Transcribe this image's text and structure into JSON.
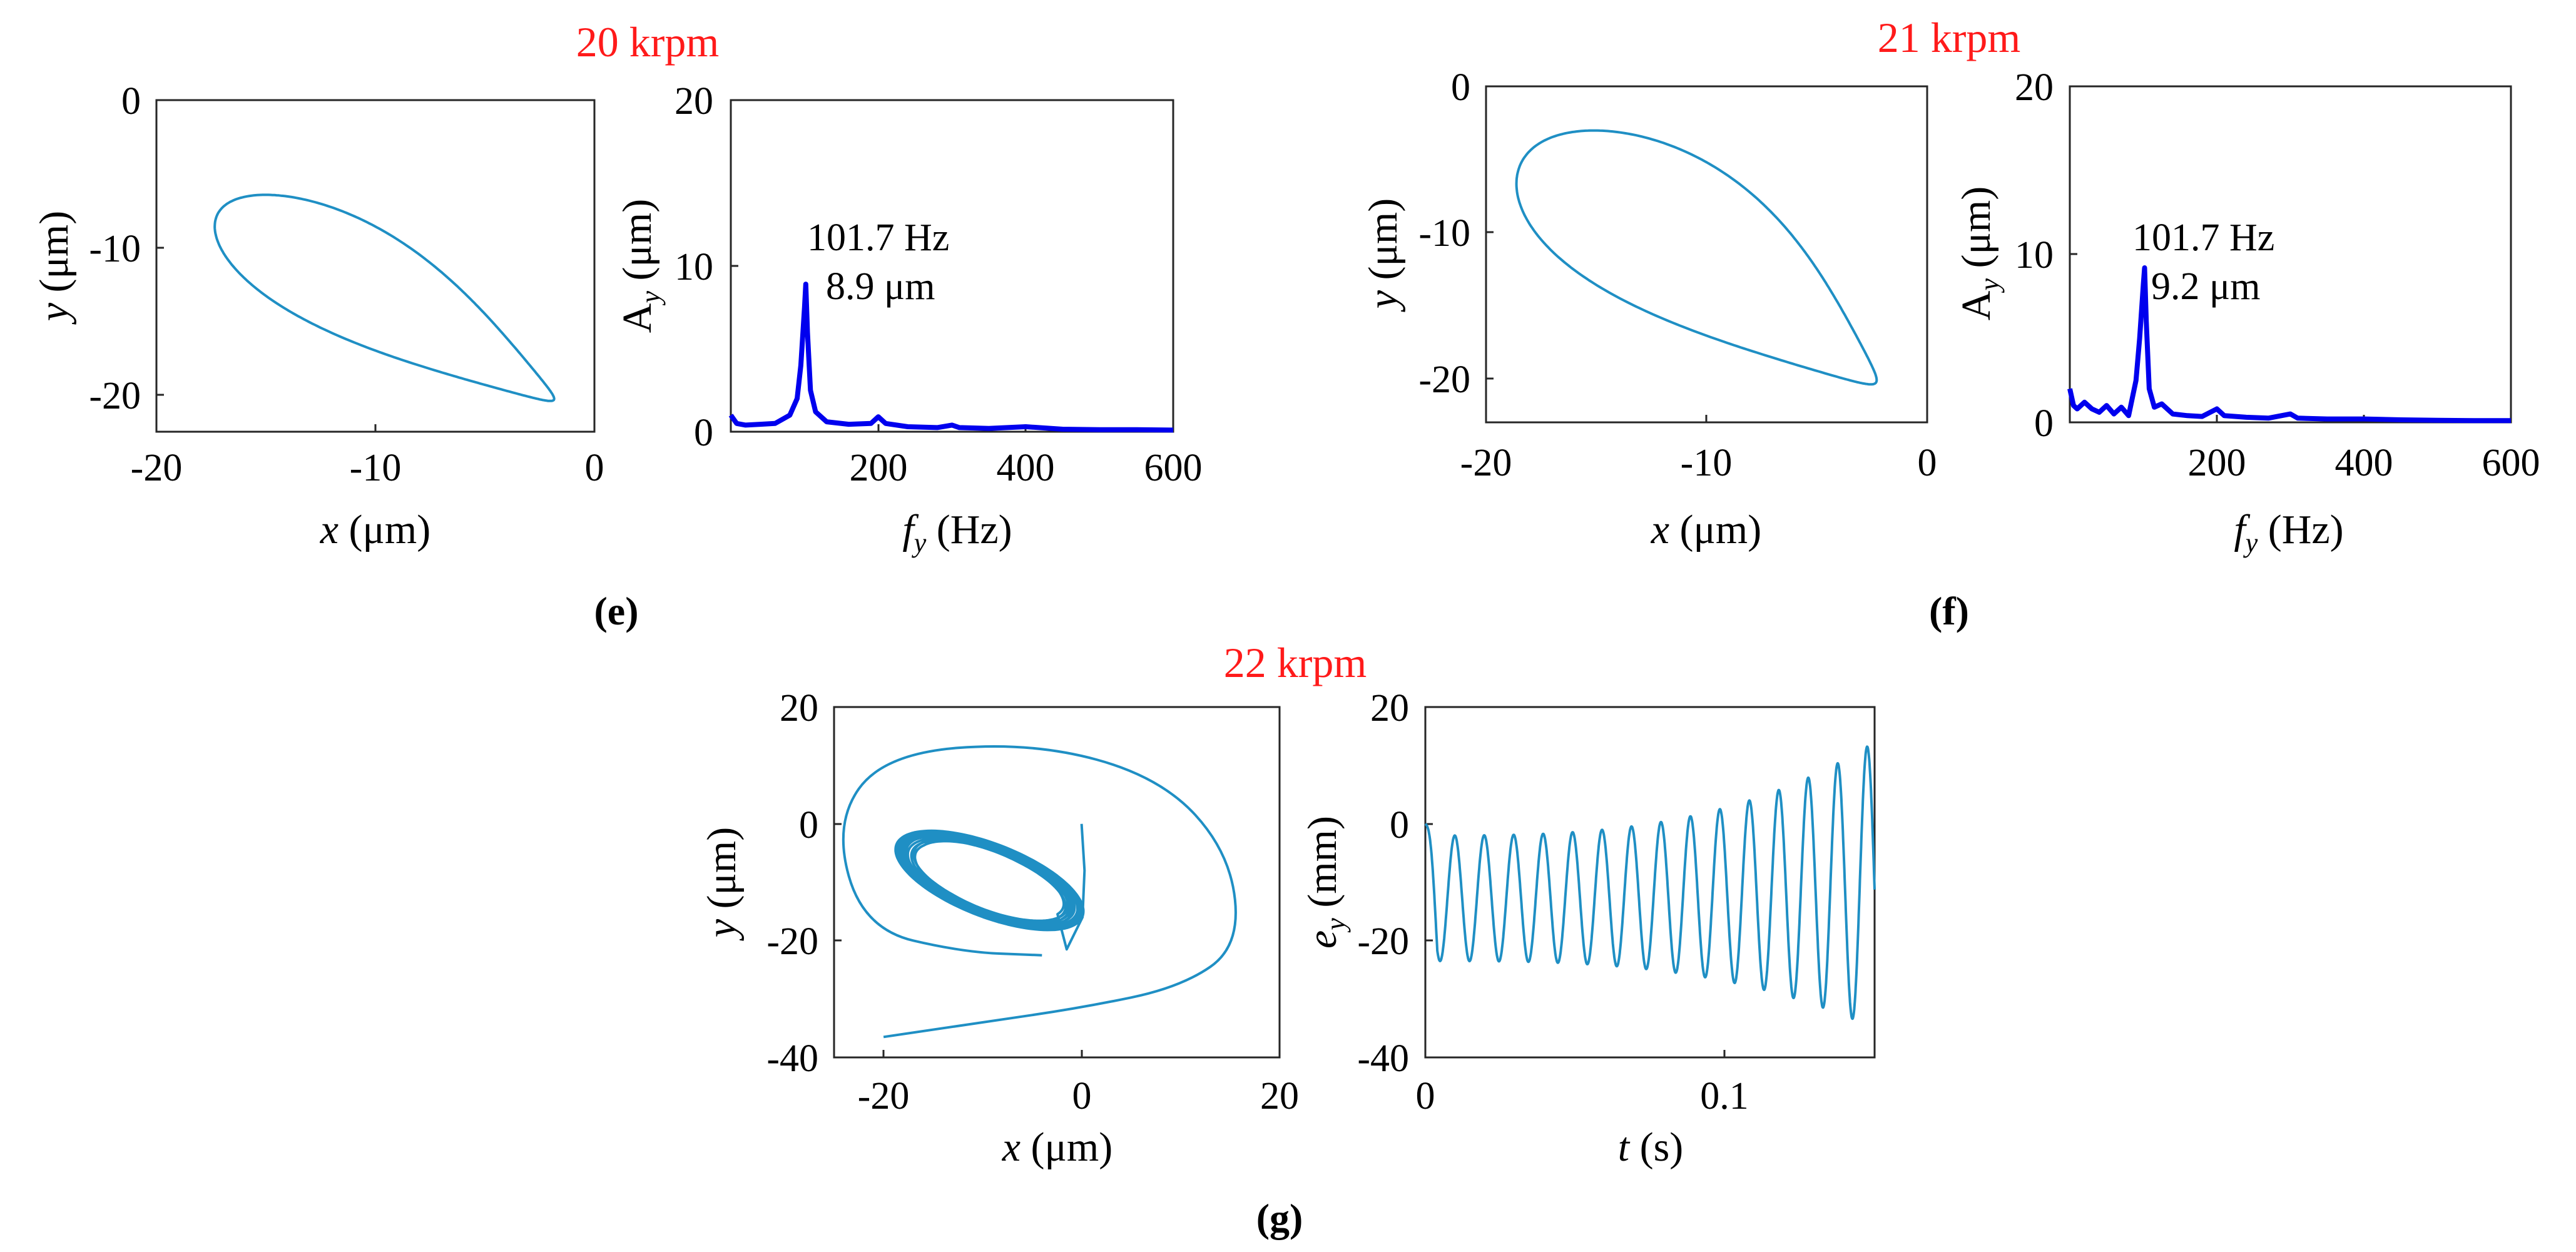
{
  "figure": {
    "speeds": {
      "e": "20 krpm",
      "f": "21 krpm",
      "g": "22 krpm"
    },
    "captions": {
      "e": "(e)",
      "f": "(f)",
      "g": "(g)"
    },
    "labels": {
      "orbit_x": {
        "var": "x",
        "unit": " (μm)"
      },
      "orbit_y": {
        "var": "y",
        "unit": " (μm)"
      },
      "spec_y": {
        "base": "A",
        "sub": "y",
        "unit": " (μm)"
      },
      "spec_x": {
        "base": "f",
        "sub": "y",
        "unit": " (Hz)"
      },
      "time_y": {
        "base": "e",
        "sub": "y",
        "unit": " (mm)"
      },
      "time_x": {
        "var": "t",
        "unit": " (s)"
      }
    },
    "annotations": {
      "e_freq": "101.7 Hz",
      "e_amp": "8.9 μm",
      "f_freq": "101.7 Hz",
      "f_amp": "9.2 μm"
    }
  },
  "chart_data": [
    {
      "id": "e-orbit",
      "type": "line",
      "panel": "e",
      "subtitle": "20 krpm",
      "xlabel": "x (μm)",
      "ylabel": "y (μm)",
      "xlim": [
        -20,
        0
      ],
      "ylim": [
        -22.5,
        0
      ],
      "xticks": [
        -20,
        -10,
        0
      ],
      "yticks": [
        -20,
        -10,
        0
      ],
      "orbit": {
        "cx": -9.36,
        "cy": -13.74,
        "alen": 10.0,
        "blen": 4.15,
        "angle_deg": -41.5,
        "tail_pow": 1.7
      },
      "color": "#1f8fc4"
    },
    {
      "id": "e-spectrum",
      "type": "line",
      "panel": "e",
      "xlabel": "f_y (Hz)",
      "ylabel": "A_y (μm)",
      "xlim": [
        0,
        600
      ],
      "ylim": [
        0,
        20
      ],
      "xticks": [
        200,
        400,
        600
      ],
      "yticks": [
        0,
        10,
        20
      ],
      "x": [
        0,
        8,
        20,
        40,
        60,
        80,
        90,
        95,
        100,
        101.7,
        104,
        108,
        115,
        130,
        160,
        190,
        200,
        210,
        240,
        280,
        300,
        310,
        350,
        400,
        450,
        500,
        550,
        600
      ],
      "y": [
        1.0,
        0.5,
        0.4,
        0.45,
        0.5,
        1.0,
        2.0,
        4.0,
        7.5,
        8.9,
        6.0,
        2.5,
        1.2,
        0.6,
        0.45,
        0.5,
        0.9,
        0.5,
        0.3,
        0.25,
        0.4,
        0.25,
        0.2,
        0.3,
        0.15,
        0.12,
        0.12,
        0.1
      ],
      "peak_annotation": {
        "frequency_hz": 101.7,
        "amplitude_um": 8.9
      },
      "color": "#0000ee"
    },
    {
      "id": "f-orbit",
      "type": "line",
      "panel": "f",
      "subtitle": "21 krpm",
      "xlabel": "x (μm)",
      "ylabel": "y (μm)",
      "xlim": [
        -20,
        0
      ],
      "ylim": [
        -23,
        0
      ],
      "xticks": [
        -20,
        -10,
        0
      ],
      "yticks": [
        -20,
        -10,
        0
      ],
      "orbit": {
        "cx": -9.96,
        "cy": -12.11,
        "alen": 11.2,
        "blen": 5.7,
        "angle_deg": -47.3,
        "tail_pow": 1.7
      },
      "color": "#1f8fc4"
    },
    {
      "id": "f-spectrum",
      "type": "line",
      "panel": "f",
      "xlabel": "f_y (Hz)",
      "ylabel": "A_y (μm)",
      "xlim": [
        0,
        600
      ],
      "ylim": [
        0,
        20
      ],
      "xticks": [
        200,
        400,
        600
      ],
      "yticks": [
        0,
        10,
        20
      ],
      "x": [
        0,
        5,
        10,
        20,
        30,
        40,
        50,
        60,
        70,
        80,
        90,
        95,
        100,
        101.7,
        104,
        108,
        115,
        125,
        140,
        160,
        180,
        200,
        210,
        240,
        270,
        300,
        310,
        350,
        400,
        450,
        500,
        550,
        600
      ],
      "y": [
        2.0,
        1.0,
        0.8,
        1.2,
        0.8,
        0.6,
        1.0,
        0.5,
        0.9,
        0.4,
        2.5,
        5.0,
        8.2,
        9.2,
        6.0,
        2.0,
        0.9,
        1.1,
        0.5,
        0.4,
        0.35,
        0.8,
        0.4,
        0.3,
        0.25,
        0.5,
        0.25,
        0.2,
        0.2,
        0.15,
        0.12,
        0.1,
        0.1
      ],
      "peak_annotation": {
        "frequency_hz": 101.7,
        "amplitude_um": 9.2
      },
      "color": "#0000ee"
    },
    {
      "id": "g-orbit",
      "type": "line",
      "panel": "g",
      "subtitle": "22 krpm",
      "xlabel": "x (μm)",
      "ylabel": "y (μm)",
      "xlim": [
        -25,
        20
      ],
      "ylim": [
        -40,
        20
      ],
      "xticks": [
        -20,
        0,
        20
      ],
      "yticks": [
        -40,
        -20,
        0,
        20
      ],
      "start_point": [
        0,
        0
      ],
      "limit_cycle": {
        "cx": -9.3,
        "cy": -9.7,
        "alen": 11.5,
        "blen": 5.5,
        "angle_deg": -40.0
      },
      "outer_loop_points": [
        [
          -20,
          -36.5
        ],
        [
          -10,
          -34
        ],
        [
          0,
          -31.5
        ],
        [
          10,
          -28
        ],
        [
          16,
          -21
        ],
        [
          15,
          -5
        ],
        [
          8,
          8
        ],
        [
          -5,
          14
        ],
        [
          -20,
          12
        ],
        [
          -25,
          0
        ],
        [
          -22,
          -18
        ],
        [
          -12,
          -22
        ],
        [
          -4,
          -22.5
        ]
      ],
      "color": "#1f8fc4"
    },
    {
      "id": "g-time",
      "type": "line",
      "panel": "g",
      "xlabel": "t (s)",
      "ylabel": "e_y (mm)",
      "xlim": [
        0,
        0.15
      ],
      "ylim": [
        -40,
        20
      ],
      "xticks": [
        0,
        0.1
      ],
      "xticklabels": [
        "0",
        "0.1"
      ],
      "yticks": [
        -40,
        -20,
        0,
        20
      ],
      "signal": {
        "frequency_hz": 101.7,
        "min_start": -23.5,
        "min_end": -35.0,
        "max_start": -2.0,
        "max_end": 14.0,
        "samples": 1500
      },
      "color": "#1f8fc4"
    }
  ]
}
